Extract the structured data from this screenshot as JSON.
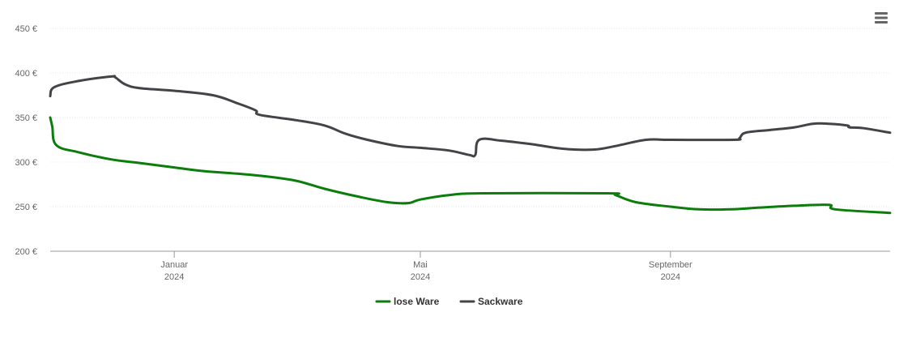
{
  "chart_data": {
    "type": "line",
    "y_unit_suffix": " €",
    "ylim": [
      200,
      450
    ],
    "y_ticks": [
      200,
      250,
      300,
      350,
      400,
      450
    ],
    "grid": true,
    "legend_position": "bottom-center",
    "x_ticks": [
      {
        "month": "Januar",
        "year": "2024",
        "date": "2024-01-01"
      },
      {
        "month": "Mai",
        "year": "2024",
        "date": "2024-05-01"
      },
      {
        "month": "September",
        "year": "2024",
        "date": "2024-09-01"
      }
    ],
    "xlim": [
      "2023-11-01",
      "2024-12-18"
    ],
    "series": [
      {
        "name": "lose Ware",
        "color": "#0a7d0a",
        "points": [
          [
            "2023-11-01",
            350
          ],
          [
            "2023-11-02",
            340
          ],
          [
            "2023-11-04",
            319
          ],
          [
            "2023-11-15",
            311
          ],
          [
            "2023-12-01",
            303
          ],
          [
            "2023-12-15",
            299
          ],
          [
            "2024-01-01",
            294
          ],
          [
            "2024-01-15",
            290
          ],
          [
            "2024-02-01",
            287
          ],
          [
            "2024-02-15",
            284
          ],
          [
            "2024-03-01",
            279
          ],
          [
            "2024-03-15",
            270
          ],
          [
            "2024-04-01",
            261
          ],
          [
            "2024-04-15",
            255
          ],
          [
            "2024-04-25",
            254
          ],
          [
            "2024-05-01",
            258
          ],
          [
            "2024-05-15",
            263
          ],
          [
            "2024-06-01",
            265
          ],
          [
            "2024-08-01",
            265
          ],
          [
            "2024-08-05",
            263
          ],
          [
            "2024-08-15",
            255
          ],
          [
            "2024-09-01",
            250
          ],
          [
            "2024-09-15",
            247
          ],
          [
            "2024-10-01",
            247
          ],
          [
            "2024-10-15",
            249
          ],
          [
            "2024-11-01",
            251
          ],
          [
            "2024-11-18",
            252
          ],
          [
            "2024-11-21",
            247
          ],
          [
            "2024-12-18",
            243
          ]
        ]
      },
      {
        "name": "Sackware",
        "color": "#434348",
        "points": [
          [
            "2023-11-01",
            374
          ],
          [
            "2023-11-03",
            384
          ],
          [
            "2023-11-15",
            391
          ],
          [
            "2023-12-01",
            396
          ],
          [
            "2023-12-03",
            395
          ],
          [
            "2023-12-08",
            387
          ],
          [
            "2023-12-15",
            383
          ],
          [
            "2024-01-01",
            380
          ],
          [
            "2024-01-20",
            375
          ],
          [
            "2024-02-01",
            366
          ],
          [
            "2024-02-10",
            358
          ],
          [
            "2024-02-12",
            353
          ],
          [
            "2024-03-01",
            347
          ],
          [
            "2024-03-15",
            341
          ],
          [
            "2024-03-25",
            332
          ],
          [
            "2024-04-05",
            325
          ],
          [
            "2024-04-20",
            318
          ],
          [
            "2024-05-01",
            316
          ],
          [
            "2024-05-15",
            313
          ],
          [
            "2024-05-25",
            308
          ],
          [
            "2024-05-28",
            308
          ],
          [
            "2024-05-30",
            325
          ],
          [
            "2024-06-10",
            324
          ],
          [
            "2024-06-25",
            320
          ],
          [
            "2024-07-10",
            315
          ],
          [
            "2024-07-25",
            314
          ],
          [
            "2024-08-05",
            318
          ],
          [
            "2024-08-20",
            325
          ],
          [
            "2024-09-01",
            325
          ],
          [
            "2024-10-02",
            325
          ],
          [
            "2024-10-05",
            327
          ],
          [
            "2024-10-08",
            333
          ],
          [
            "2024-10-20",
            336
          ],
          [
            "2024-11-01",
            339
          ],
          [
            "2024-11-10",
            343
          ],
          [
            "2024-11-18",
            343
          ],
          [
            "2024-11-27",
            341
          ],
          [
            "2024-11-28",
            339
          ],
          [
            "2024-12-05",
            338
          ],
          [
            "2024-12-18",
            333
          ]
        ]
      }
    ]
  },
  "menu": {
    "icon": "hamburger-menu-icon"
  }
}
